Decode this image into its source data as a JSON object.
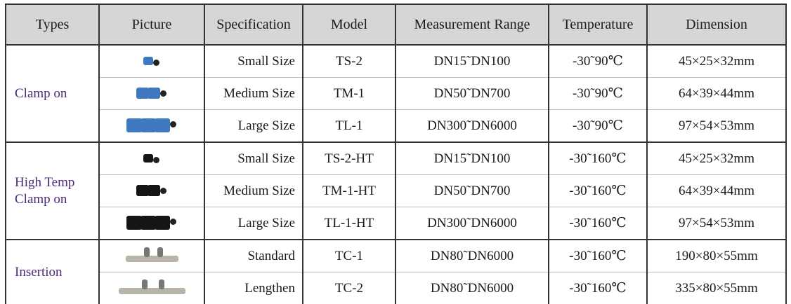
{
  "table": {
    "header": [
      "Types",
      "Picture",
      "Specification",
      "Model",
      "Measurement Range",
      "Temperature",
      "Dimension"
    ],
    "groups": [
      {
        "type": "Clamp on",
        "rows": [
          [
            "Small Size",
            "TS-2",
            "DN15˜DN100",
            "-30˜90℃",
            "45×25×32mm"
          ],
          [
            "Medium Size",
            "TM-1",
            "DN50˜DN700",
            "-30˜90℃",
            "64×39×44mm"
          ],
          [
            "Large Size",
            "TL-1",
            "DN300˜DN6000",
            "-30˜90℃",
            "97×54×53mm"
          ]
        ]
      },
      {
        "type": "High Temp Clamp on",
        "rows": [
          [
            "Small Size",
            "TS-2-HT",
            "DN15˜DN100",
            "-30˜160℃",
            "45×25×32mm"
          ],
          [
            "Medium Size",
            "TM-1-HT",
            "DN50˜DN700",
            "-30˜160℃",
            "64×39×44mm"
          ],
          [
            "Large Size",
            "TL-1-HT",
            "DN300˜DN6000",
            "-30˜160℃",
            "97×54×53mm"
          ]
        ]
      },
      {
        "type": "Insertion",
        "rows": [
          [
            "Standard",
            "TC-1",
            "DN80˜DN6000",
            "-30˜160℃",
            "190×80×55mm"
          ],
          [
            "Lengthen",
            "TC-2",
            "DN80˜DN6000",
            "-30˜160℃",
            "335×80×55mm"
          ]
        ]
      }
    ]
  }
}
